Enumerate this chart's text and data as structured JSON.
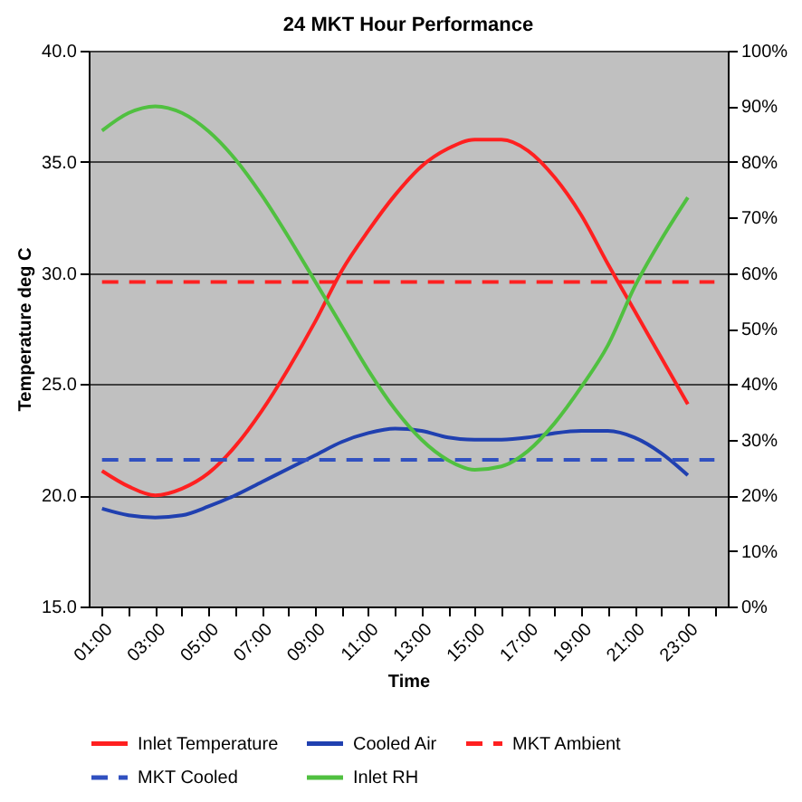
{
  "chart_data": {
    "type": "line",
    "title": "24 MKT Hour Performance",
    "xlabel": "Time",
    "ylabel": "Temperature deg C",
    "x": [
      1,
      2,
      3,
      4,
      5,
      6,
      7,
      8,
      9,
      10,
      11,
      12,
      13,
      14,
      15,
      16,
      17,
      18,
      19,
      20,
      21,
      22,
      23,
      24
    ],
    "xlim": [
      0.5,
      24.5
    ],
    "xticks": [
      {
        "value": 1,
        "label": "01:00"
      },
      {
        "value": 2,
        "label": null
      },
      {
        "value": 3,
        "label": "03:00"
      },
      {
        "value": 4,
        "label": null
      },
      {
        "value": 5,
        "label": "05:00"
      },
      {
        "value": 6,
        "label": null
      },
      {
        "value": 7,
        "label": "07:00"
      },
      {
        "value": 8,
        "label": null
      },
      {
        "value": 9,
        "label": "09:00"
      },
      {
        "value": 10,
        "label": null
      },
      {
        "value": 11,
        "label": "11:00"
      },
      {
        "value": 12,
        "label": null
      },
      {
        "value": 13,
        "label": "13:00"
      },
      {
        "value": 14,
        "label": null
      },
      {
        "value": 15,
        "label": "15:00"
      },
      {
        "value": 16,
        "label": null
      },
      {
        "value": 17,
        "label": "17:00"
      },
      {
        "value": 18,
        "label": null
      },
      {
        "value": 19,
        "label": "19:00"
      },
      {
        "value": 20,
        "label": null
      },
      {
        "value": 21,
        "label": "21:00"
      },
      {
        "value": 22,
        "label": null
      },
      {
        "value": 23,
        "label": "23:00"
      },
      {
        "value": 24,
        "label": null
      }
    ],
    "ylim": [
      15,
      40
    ],
    "yticks": [
      {
        "value": 15,
        "label": "15.0"
      },
      {
        "value": 20,
        "label": "20.0"
      },
      {
        "value": 25,
        "label": "25.0"
      },
      {
        "value": 30,
        "label": "30.0"
      },
      {
        "value": 35,
        "label": "35.0"
      },
      {
        "value": 40,
        "label": "40.0"
      }
    ],
    "y2lim": [
      0,
      100
    ],
    "y2ticks": [
      {
        "value": 0,
        "label": "0%"
      },
      {
        "value": 10,
        "label": "10%"
      },
      {
        "value": 20,
        "label": "20%"
      },
      {
        "value": 30,
        "label": "30%"
      },
      {
        "value": 40,
        "label": "40%"
      },
      {
        "value": 50,
        "label": "50%"
      },
      {
        "value": 60,
        "label": "60%"
      },
      {
        "value": 70,
        "label": "70%"
      },
      {
        "value": 80,
        "label": "80%"
      },
      {
        "value": 90,
        "label": "90%"
      },
      {
        "value": 100,
        "label": "100%"
      }
    ],
    "grid": "y",
    "legend": "bottom",
    "marker": "none",
    "series": [
      {
        "name": "Inlet Temperature",
        "color": "#ff2020",
        "line_style": "solid",
        "values": [
          21.1,
          20.4,
          20.0,
          20.3,
          21.0,
          22.2,
          23.8,
          25.7,
          27.8,
          30.1,
          31.9,
          33.5,
          34.8,
          35.6,
          36.0,
          36.0,
          35.5,
          34.3,
          32.6,
          30.4,
          28.3,
          26.2,
          24.1,
          null
        ]
      },
      {
        "name": "Cooled Air",
        "color": "#2040b0",
        "line_style": "solid",
        "values": [
          19.4,
          19.1,
          19.0,
          19.1,
          19.5,
          20.0,
          20.6,
          21.2,
          21.8,
          22.4,
          22.8,
          23.0,
          22.9,
          22.6,
          22.5,
          22.5,
          22.6,
          22.8,
          22.9,
          22.9,
          22.6,
          21.9,
          20.9,
          null
        ]
      },
      {
        "name": "MKT Ambient",
        "color": "#ff2020",
        "line_style": "dashed",
        "values": [
          29.6,
          29.6,
          29.6,
          29.6,
          29.6,
          29.6,
          29.6,
          29.6,
          29.6,
          29.6,
          29.6,
          29.6,
          29.6,
          29.6,
          29.6,
          29.6,
          29.6,
          29.6,
          29.6,
          29.6,
          29.6,
          29.6,
          29.6,
          29.6
        ]
      },
      {
        "name": "MKT Cooled",
        "color": "#3050c0",
        "line_style": "dashed",
        "values": [
          21.6,
          21.6,
          21.6,
          21.6,
          21.6,
          21.6,
          21.6,
          21.6,
          21.6,
          21.6,
          21.6,
          21.6,
          21.6,
          21.6,
          21.6,
          21.6,
          21.6,
          21.6,
          21.6,
          21.6,
          21.6,
          21.6,
          21.6,
          21.6
        ]
      },
      {
        "name": "Inlet RH",
        "color": "#50c040",
        "line_style": "solid",
        "axis": "y2",
        "values": [
          85.6,
          88.8,
          90.0,
          88.8,
          85.5,
          80.5,
          74.0,
          66.5,
          58.5,
          50.5,
          42.5,
          35.5,
          30.0,
          26.3,
          24.6,
          25.2,
          28.0,
          33.0,
          39.5,
          47.0,
          57.5,
          66.0,
          73.6,
          null
        ]
      }
    ]
  }
}
